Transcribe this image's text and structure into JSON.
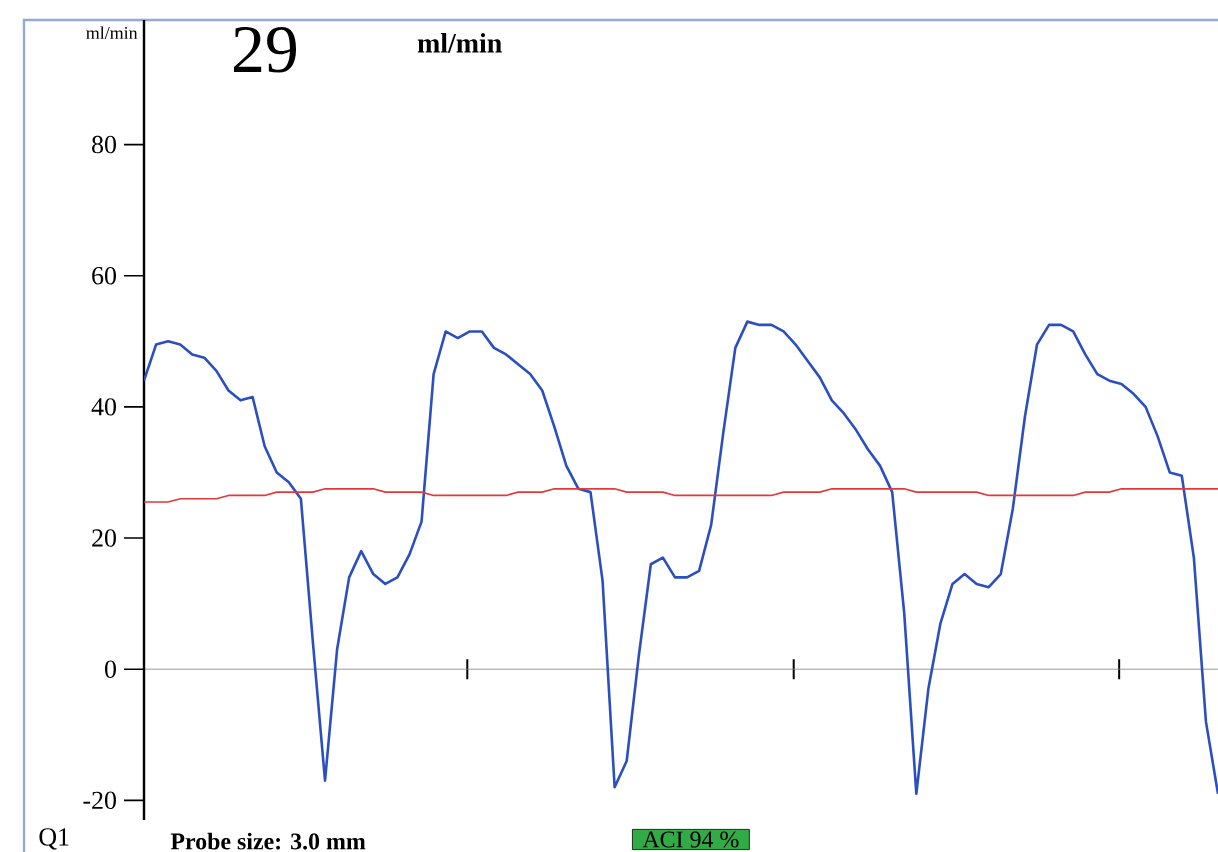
{
  "chart_data": {
    "type": "line",
    "ylabel": "ml/min",
    "annotations": [
      "29",
      "ml/min",
      "Q1",
      "Probe size: 3.0 mm",
      "ACI 94 %"
    ],
    "categories": [
      null,
      null,
      null,
      null,
      null,
      null,
      null,
      null,
      null,
      null,
      null,
      null,
      null,
      null,
      null,
      null,
      null,
      null,
      null,
      null,
      null,
      null,
      null,
      null,
      null,
      null,
      null,
      null,
      null,
      null,
      null,
      null,
      null,
      null,
      null,
      null,
      null,
      null,
      null,
      null,
      null,
      null,
      null,
      null,
      null,
      null,
      null,
      null,
      null,
      null,
      null,
      null,
      null,
      null,
      null,
      null,
      null,
      null,
      null,
      null,
      null,
      null,
      null,
      null,
      null,
      null,
      null,
      null,
      null,
      null,
      null,
      null,
      null,
      null,
      null,
      null,
      null,
      null,
      null,
      null,
      null,
      null,
      null,
      null,
      null,
      null,
      null,
      null,
      null,
      null
    ],
    "ylim": [
      -23,
      99
    ],
    "yticks": [
      -20,
      0,
      20,
      40,
      60,
      80
    ],
    "tick_labels": "y",
    "series": [
      {
        "color": "#2b4fc0",
        "values": [
          44,
          49.5,
          50,
          49.5,
          48,
          47.5,
          45.5,
          42.5,
          41,
          41.5,
          34,
          30,
          28.5,
          26,
          4,
          -17,
          3,
          14,
          18,
          14.5,
          13,
          14,
          17.5,
          22.5,
          45,
          51.5,
          50.5,
          51.5,
          51.5,
          49,
          48,
          46.5,
          45,
          42.5,
          37,
          31,
          27.5,
          27,
          13.5,
          -18,
          -14,
          2,
          16,
          17,
          14,
          14,
          15,
          22,
          36,
          49,
          53,
          52.5,
          52.5,
          51.5,
          49.5,
          47,
          44.5,
          41,
          39,
          36.5,
          33.5,
          31,
          27,
          8.5,
          -19,
          -3,
          7,
          13,
          14.5,
          13,
          12.5,
          14.5,
          24.5,
          38.5,
          49.5,
          52.5,
          52.5,
          51.5,
          48,
          45,
          44,
          43.5,
          42,
          40,
          35.5,
          30,
          29.5,
          17,
          -8,
          -19
        ]
      },
      {
        "color": "#e03a3a",
        "values": [
          25.5,
          25.5,
          25.5,
          26,
          26,
          26,
          26,
          26.5,
          26.5,
          26.5,
          26.5,
          27,
          27,
          27,
          27,
          27.5,
          27.5,
          27.5,
          27.5,
          27.5,
          27,
          27,
          27,
          27,
          26.5,
          26.5,
          26.5,
          26.5,
          26.5,
          26.5,
          26.5,
          27,
          27,
          27,
          27.5,
          27.5,
          27.5,
          27.5,
          27.5,
          27.5,
          27,
          27,
          27,
          27,
          26.5,
          26.5,
          26.5,
          26.5,
          26.5,
          26.5,
          26.5,
          26.5,
          26.5,
          27,
          27,
          27,
          27,
          27.5,
          27.5,
          27.5,
          27.5,
          27.5,
          27.5,
          27.5,
          27,
          27,
          27,
          27,
          27,
          27,
          26.5,
          26.5,
          26.5,
          26.5,
          26.5,
          26.5,
          26.5,
          26.5,
          27,
          27,
          27,
          27.5,
          27.5,
          27.5,
          27.5,
          27.5,
          27.5,
          27.5,
          27.5,
          27.5
        ]
      }
    ]
  }
}
